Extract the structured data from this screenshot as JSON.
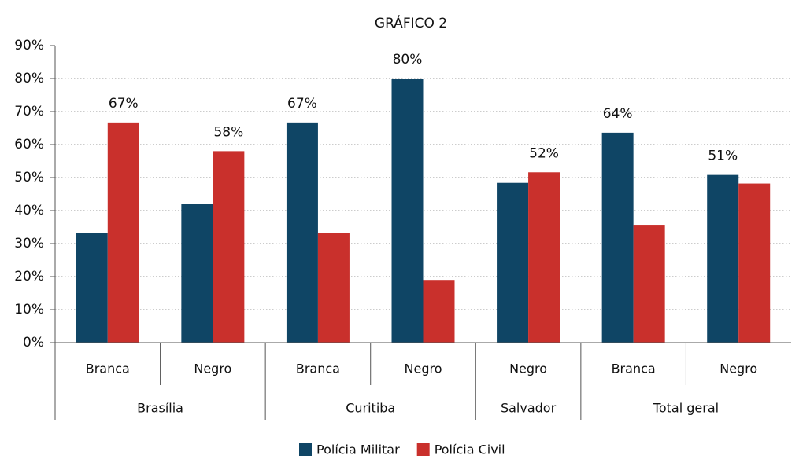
{
  "chart_data": {
    "type": "bar",
    "title": "GRÁFICO 2",
    "categories": [
      "Branca",
      "Negro",
      "Branca",
      "Negro",
      "Negro",
      "Branca",
      "Negro"
    ],
    "groups": [
      "Brasília",
      "Brasília",
      "Curitiba",
      "Curitiba",
      "Salvador",
      "Total geral",
      "Total geral"
    ],
    "series": [
      {
        "name": "Polícia Militar",
        "color": "#0f4565",
        "values": [
          33.3,
          42,
          66.7,
          80,
          48.4,
          63.6,
          50.8
        ],
        "value_labels": [
          null,
          null,
          "67%",
          "80%",
          null,
          "64%",
          "51%"
        ]
      },
      {
        "name": "Polícia Civil",
        "color": "#c9302c",
        "values": [
          66.7,
          58,
          33.3,
          19,
          51.6,
          35.7,
          48.2
        ],
        "value_labels": [
          "67%",
          "58%",
          null,
          null,
          "52%",
          null,
          null
        ]
      }
    ],
    "ylim": [
      0,
      90
    ],
    "yticks": [
      {
        "value": 0,
        "label": "0%"
      },
      {
        "value": 10,
        "label": "10%"
      },
      {
        "value": 20,
        "label": "20%"
      },
      {
        "value": 30,
        "label": "30%"
      },
      {
        "value": 40,
        "label": "40%"
      },
      {
        "value": 50,
        "label": "50%"
      },
      {
        "value": 60,
        "label": "60%"
      },
      {
        "value": 70,
        "label": "70%"
      },
      {
        "value": 80,
        "label": "80%"
      },
      {
        "value": 90,
        "label": "90%"
      }
    ],
    "grid": true,
    "legend": "bottom"
  }
}
